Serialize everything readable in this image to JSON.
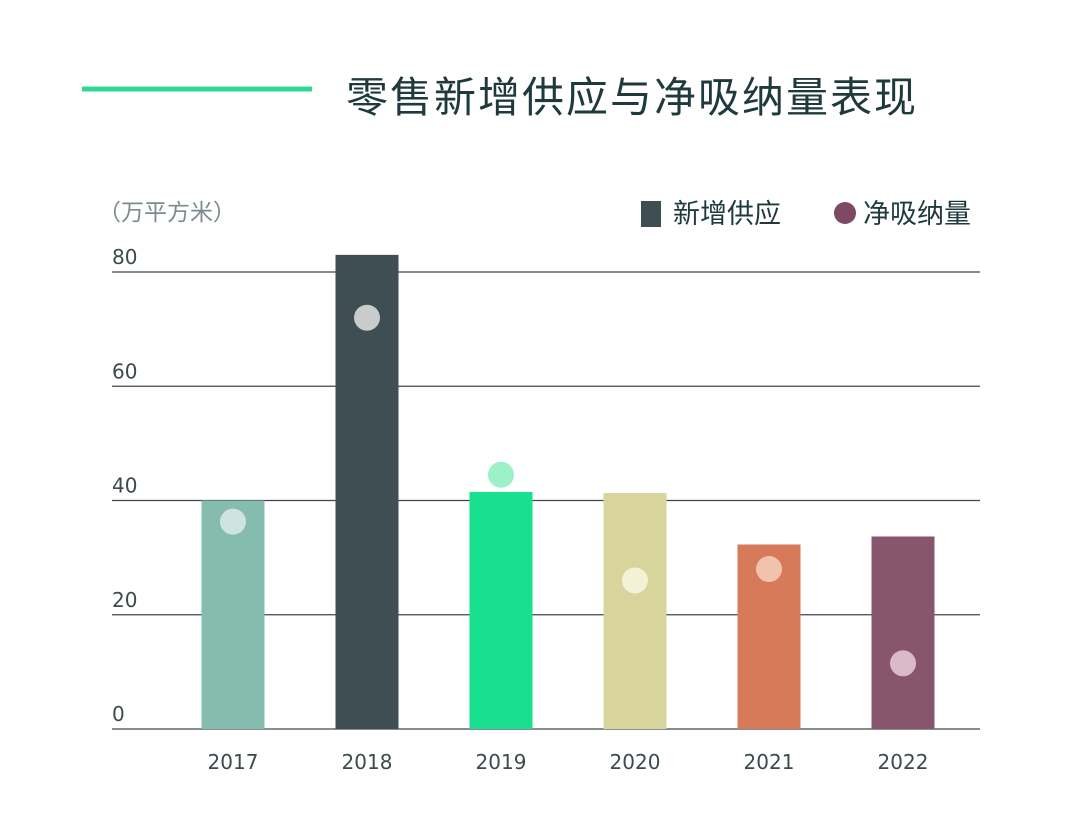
{
  "chart_data": {
    "type": "bar",
    "title": "零售新增供应与净吸纳量表现",
    "unit_label": "（万平方米）",
    "categories": [
      "2017",
      "2018",
      "2019",
      "2020",
      "2021",
      "2022"
    ],
    "series": [
      {
        "name": "新增供应",
        "kind": "bar",
        "values": [
          40,
          83,
          41.5,
          41.3,
          32.3,
          33.7
        ],
        "colors": [
          "#86bcae",
          "#3e4e52",
          "#19e08e",
          "#d8d59c",
          "#d67a5a",
          "#87556e"
        ],
        "legend_color": "#3e4e52"
      },
      {
        "name": "净吸纳量",
        "kind": "dot",
        "values": [
          36.3,
          72,
          44.5,
          26,
          28,
          11.5
        ],
        "colors": [
          "#cfe4de",
          "#c8cccc",
          "#9df0c8",
          "#f3f2d6",
          "#f1c3ad",
          "#dab9c9"
        ],
        "legend_color": "#7d4a63"
      }
    ],
    "ylim": [
      0,
      80
    ],
    "yticks": [
      0,
      20,
      40,
      60,
      80
    ],
    "grid": true,
    "legend_position": "top-right",
    "xlabel": "",
    "ylabel": ""
  },
  "colors": {
    "accent_line": "#2fd895",
    "gridline": "#3d4a4c",
    "title": "#1f3a3d"
  }
}
